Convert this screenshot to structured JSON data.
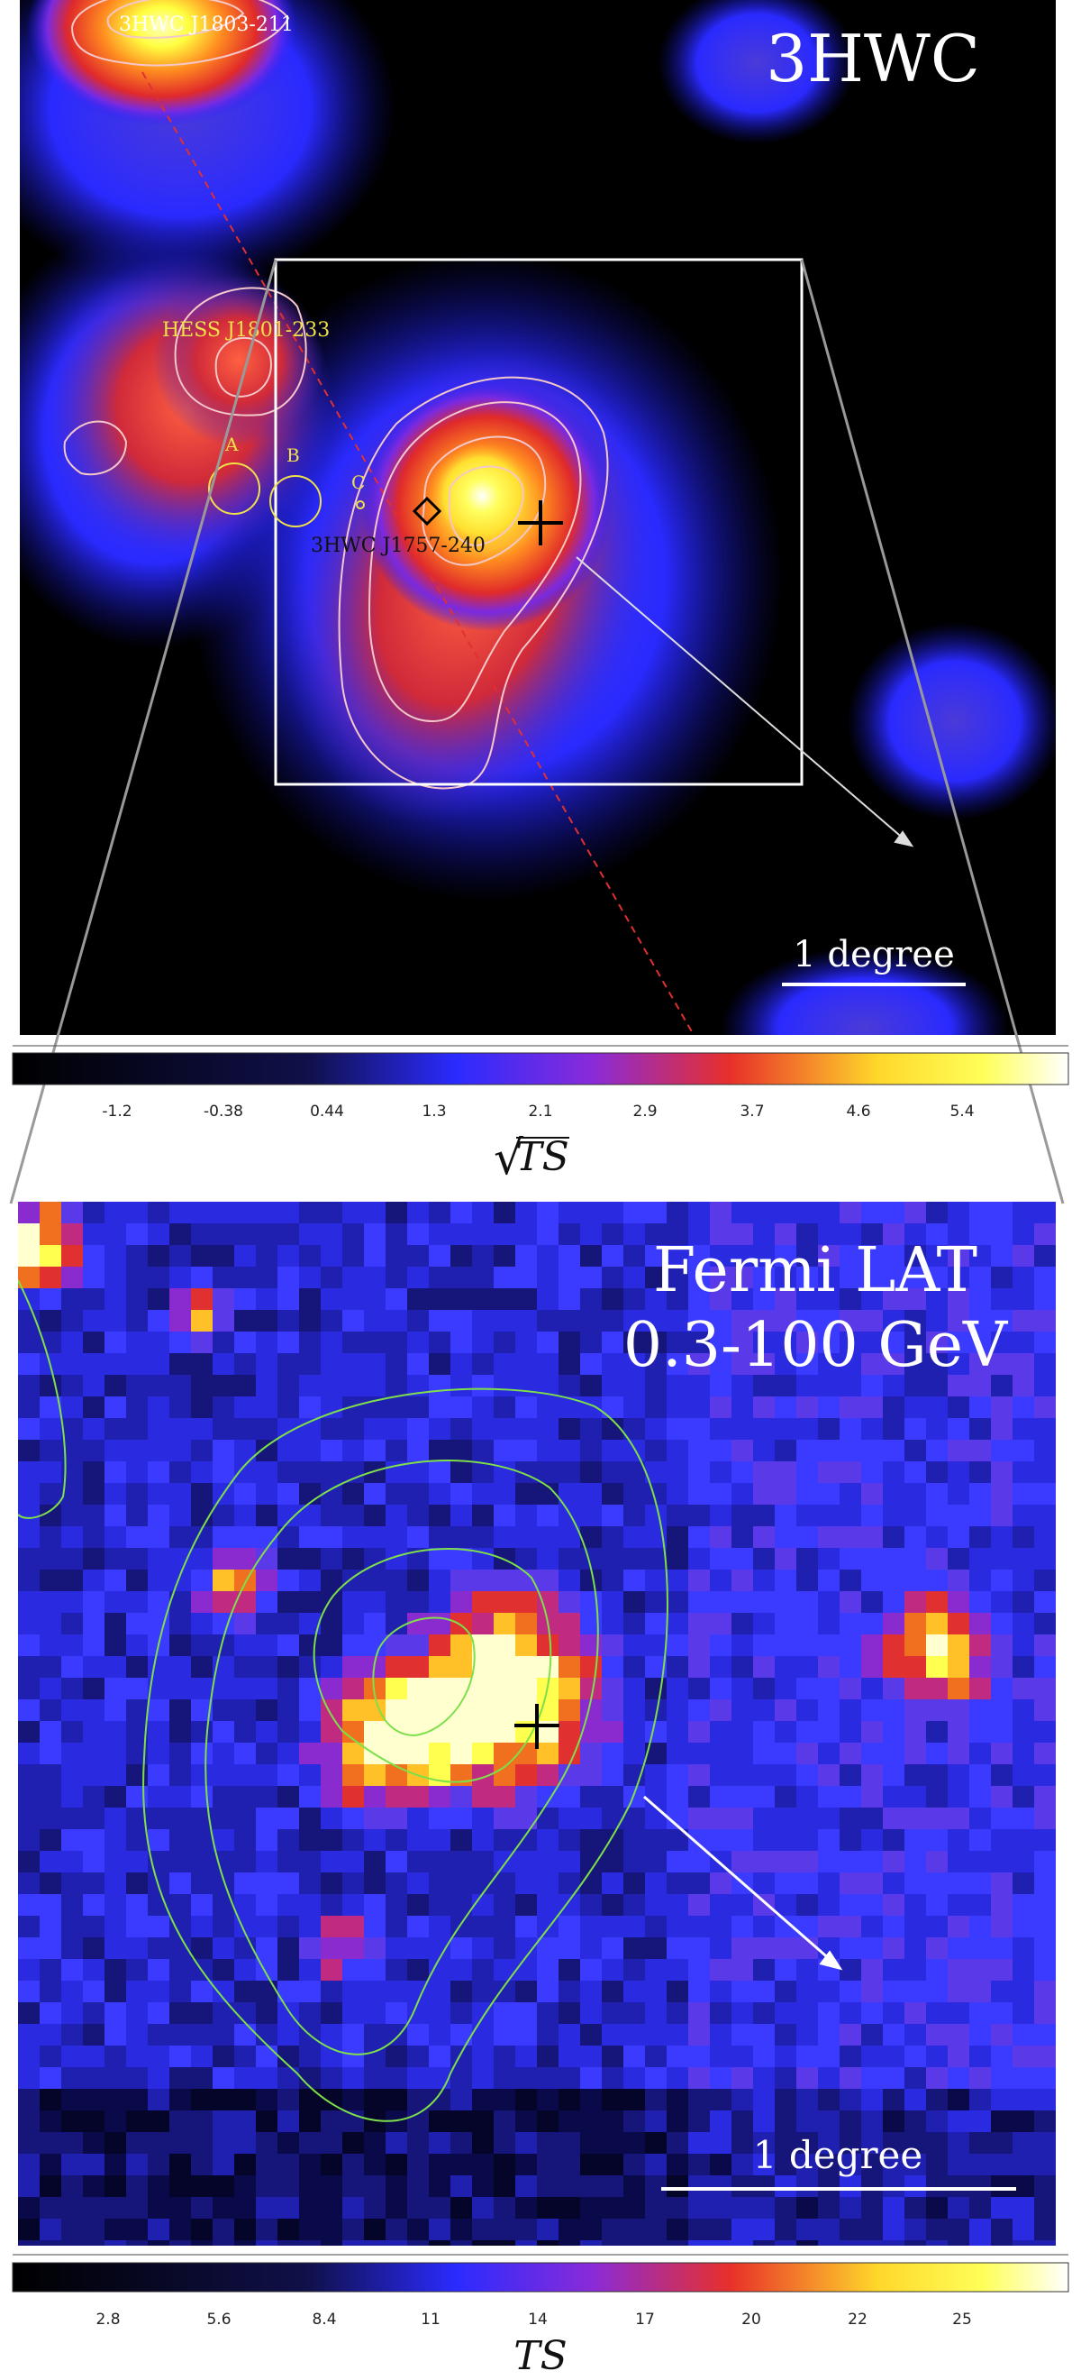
{
  "top_panel": {
    "title": "3HWC",
    "labels": {
      "src_north": "3HWC J1803-211",
      "hess": "HESS J1801-233",
      "circle_a": "A",
      "circle_b": "B",
      "circle_c": "C",
      "src_main": "3HWC J1757-240"
    },
    "scale_bar": "1 degree",
    "colorbar": {
      "ticks": [
        "-1.2",
        "-0.38",
        "0.44",
        "1.3",
        "2.1",
        "2.9",
        "3.7",
        "4.6",
        "5.4"
      ],
      "label_prefix": "√",
      "label": "TS"
    }
  },
  "bottom_panel": {
    "title_line1": "Fermi LAT",
    "title_line2": "0.3-100 GeV",
    "scale_bar": "1 degree",
    "colorbar": {
      "ticks": [
        "2.8",
        "5.6",
        "8.4",
        "11",
        "14",
        "17",
        "20",
        "22",
        "25"
      ],
      "label": "TS"
    }
  },
  "colors": {
    "contour_top": "#f4c8c8",
    "contour_bottom": "#7de04a",
    "label_yellow": "#f0e04a",
    "label_black": "#111111"
  }
}
